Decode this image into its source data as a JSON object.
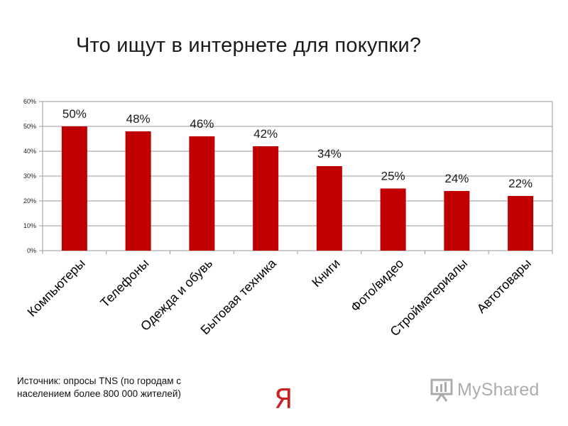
{
  "chart_data": {
    "type": "bar",
    "title": "Что ищут в интернете для покупки?",
    "categories": [
      "Компьютеры",
      "Телефоны",
      "Одежда и обувь",
      "Бытовая техника",
      "Книги",
      "Фото/видео",
      "Стройматериалы",
      "Автотовары"
    ],
    "values": [
      50,
      48,
      46,
      42,
      34,
      25,
      24,
      22
    ],
    "data_labels": [
      "50%",
      "48%",
      "46%",
      "42%",
      "34%",
      "25%",
      "24%",
      "22%"
    ],
    "y_ticks": [
      0,
      10,
      20,
      30,
      40,
      50,
      60
    ],
    "y_tick_labels": [
      "0%",
      "10%",
      "20%",
      "30%",
      "40%",
      "50%",
      "60%"
    ],
    "ylim": [
      0,
      60
    ],
    "grid": true,
    "bar_color": "#c00000",
    "legend": "none"
  },
  "footer": {
    "source_note": "Источник: опросы TNS (по городам с населением более 800 000 жителей)",
    "yandex_logo": "Я",
    "watermark": "MyShared"
  },
  "icons": {
    "watermark": "presentation-board-icon"
  }
}
